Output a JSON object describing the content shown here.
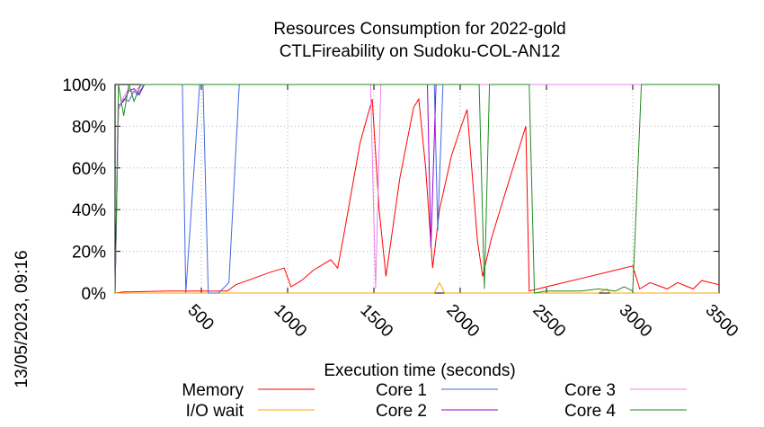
{
  "chart_data": {
    "type": "line",
    "title": "Resources Consumption for 2022-gold",
    "subtitle": "CTLFireability on Sudoku-COL-AN12",
    "xlabel": "Execution time (seconds)",
    "ylabel": "",
    "side_label": "13/05/2023, 09:16",
    "xlim": [
      0,
      3500
    ],
    "ylim": [
      0,
      100
    ],
    "x_ticks": [
      500,
      1000,
      1500,
      2000,
      2500,
      3000,
      3500
    ],
    "y_ticks": [
      0,
      20,
      40,
      60,
      80,
      100
    ],
    "y_tick_labels": [
      "0%",
      "20%",
      "40%",
      "60%",
      "80%",
      "100%"
    ],
    "grid": true,
    "legend_position": "bottom",
    "series": [
      {
        "name": "Memory",
        "color": "#ff0000",
        "points": [
          [
            0,
            0
          ],
          [
            50,
            0.5
          ],
          [
            100,
            0.6
          ],
          [
            300,
            1
          ],
          [
            500,
            1
          ],
          [
            600,
            1
          ],
          [
            650,
            1
          ],
          [
            700,
            4
          ],
          [
            800,
            7
          ],
          [
            900,
            10
          ],
          [
            980,
            12
          ],
          [
            1020,
            3
          ],
          [
            1080,
            6
          ],
          [
            1150,
            11
          ],
          [
            1250,
            16
          ],
          [
            1290,
            12
          ],
          [
            1330,
            30
          ],
          [
            1420,
            72
          ],
          [
            1490,
            93
          ],
          [
            1530,
            40
          ],
          [
            1570,
            8
          ],
          [
            1650,
            55
          ],
          [
            1730,
            89
          ],
          [
            1760,
            93
          ],
          [
            1800,
            60
          ],
          [
            1840,
            12
          ],
          [
            1880,
            40
          ],
          [
            1950,
            66
          ],
          [
            2010,
            81
          ],
          [
            2040,
            88
          ],
          [
            2100,
            25
          ],
          [
            2130,
            8
          ],
          [
            2180,
            26
          ],
          [
            2250,
            45
          ],
          [
            2380,
            80
          ],
          [
            2400,
            1
          ],
          [
            2500,
            3
          ],
          [
            2700,
            7
          ],
          [
            2900,
            11
          ],
          [
            3000,
            13
          ],
          [
            3040,
            2
          ],
          [
            3100,
            5
          ],
          [
            3200,
            2
          ],
          [
            3260,
            5
          ],
          [
            3350,
            2
          ],
          [
            3400,
            6
          ],
          [
            3500,
            4
          ]
        ]
      },
      {
        "name": "I/O wait",
        "color": "#ffa500",
        "points": [
          [
            0,
            0
          ],
          [
            1400,
            0
          ],
          [
            1850,
            0
          ],
          [
            1880,
            5
          ],
          [
            1910,
            0
          ],
          [
            2800,
            0
          ],
          [
            2850,
            2
          ],
          [
            2870,
            0
          ],
          [
            3500,
            0
          ]
        ]
      },
      {
        "name": "Core 1",
        "color": "#4169e1",
        "points": [
          [
            0,
            0
          ],
          [
            20,
            88
          ],
          [
            50,
            93
          ],
          [
            80,
            92
          ],
          [
            110,
            97
          ],
          [
            130,
            95
          ],
          [
            170,
            100
          ],
          [
            250,
            100
          ],
          [
            390,
            100
          ],
          [
            410,
            0
          ],
          [
            490,
            100
          ],
          [
            510,
            100
          ],
          [
            540,
            0
          ],
          [
            600,
            0
          ],
          [
            660,
            5
          ],
          [
            720,
            100
          ],
          [
            1400,
            100
          ],
          [
            1640,
            100
          ],
          [
            1850,
            100
          ],
          [
            1870,
            30
          ],
          [
            1900,
            100
          ],
          [
            3500,
            100
          ]
        ]
      },
      {
        "name": "Core 2",
        "color": "#9400d3",
        "points": [
          [
            0,
            0
          ],
          [
            20,
            90
          ],
          [
            50,
            92
          ],
          [
            80,
            97
          ],
          [
            110,
            98
          ],
          [
            140,
            95
          ],
          [
            170,
            100
          ],
          [
            1500,
            100
          ],
          [
            1620,
            100
          ],
          [
            1810,
            100
          ],
          [
            1830,
            22
          ],
          [
            1860,
            100
          ],
          [
            3500,
            100
          ]
        ]
      },
      {
        "name": "Core 3",
        "color": "#ee82ee",
        "points": [
          [
            0,
            0
          ],
          [
            20,
            88
          ],
          [
            50,
            94
          ],
          [
            80,
            98
          ],
          [
            110,
            96
          ],
          [
            140,
            99
          ],
          [
            170,
            100
          ],
          [
            1480,
            100
          ],
          [
            1510,
            2
          ],
          [
            1540,
            100
          ],
          [
            3500,
            100
          ]
        ]
      },
      {
        "name": "Core 4",
        "color": "#228b22",
        "points": [
          [
            0,
            0
          ],
          [
            20,
            100
          ],
          [
            50,
            85
          ],
          [
            80,
            100
          ],
          [
            110,
            92
          ],
          [
            150,
            100
          ],
          [
            2110,
            100
          ],
          [
            2140,
            2
          ],
          [
            2170,
            100
          ],
          [
            2400,
            100
          ],
          [
            2430,
            0
          ],
          [
            2500,
            1
          ],
          [
            2700,
            1
          ],
          [
            2800,
            2
          ],
          [
            2900,
            1
          ],
          [
            2950,
            3
          ],
          [
            3000,
            1
          ],
          [
            3050,
            100
          ],
          [
            3500,
            100
          ]
        ]
      }
    ]
  }
}
